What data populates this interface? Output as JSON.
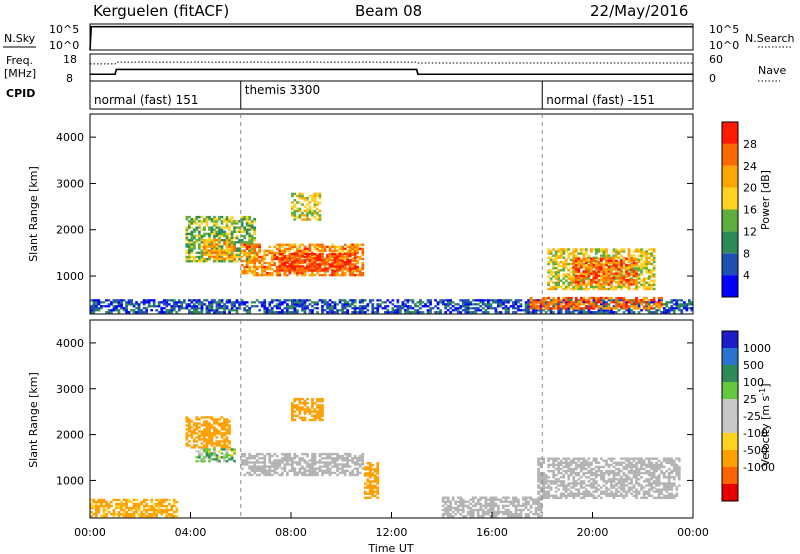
{
  "header": {
    "station": "Kerguelen (fitACF)",
    "beam": "Beam 08",
    "date": "22/May/2016"
  },
  "panel_labels": {
    "nsky": "N.Sky",
    "nsky_ticks": [
      "10^5",
      "10^0"
    ],
    "nsearch": "N.Search",
    "freq_top": "Freq.",
    "freq_unit": "[MHz]",
    "freq_ticks": [
      "18",
      "8"
    ],
    "nave": "Nave",
    "nave_ticks": [
      "60",
      "0"
    ],
    "cpid": "CPID"
  },
  "cpid_modes": [
    {
      "label": "normal (fast) 151",
      "start_hour": 0
    },
    {
      "label": "themis 3300",
      "start_hour": 6
    },
    {
      "label": "normal (fast) -151",
      "start_hour": 18
    }
  ],
  "colors": {
    "power_scale": [
      "#0000ff",
      "#1f4fb3",
      "#2e8b57",
      "#5fae3c",
      "#ffd21f",
      "#ffa500",
      "#ff6a00",
      "#ff1a00"
    ],
    "velocity_scale": [
      "#1c1cc8",
      "#2a73d0",
      "#2e8b57",
      "#64c83c",
      "#c8c8c8",
      "#c8c8c8",
      "#ffd21f",
      "#ffa000",
      "#ff6400",
      "#e60000"
    ],
    "ground_scatter": "#b4b4b4"
  },
  "chart_data": [
    {
      "type": "line",
      "panel": "sky-noise",
      "ylabel": "N.Sky",
      "yscale": "log",
      "ylim": [
        1,
        100000
      ],
      "x_hours": [
        0,
        0.05,
        24
      ],
      "values": [
        1,
        30000,
        30000
      ],
      "series": [
        {
          "name": "N.Sky",
          "values": [
            1,
            30000,
            30000
          ]
        },
        {
          "name": "N.Search",
          "values": []
        }
      ]
    },
    {
      "type": "line",
      "panel": "frequency",
      "ylabel": "Freq. [MHz]",
      "ylim": [
        8,
        18
      ],
      "y2label": "Nave",
      "y2lim": [
        0,
        60
      ],
      "x_hours": [
        0,
        1,
        1.05,
        13,
        13.05,
        24
      ],
      "series": [
        {
          "name": "Freq.",
          "values": [
            10.5,
            10.5,
            12.3,
            12.3,
            10.5,
            10.5
          ]
        },
        {
          "name": "Nave",
          "values": [
            38,
            38,
            42,
            42,
            40,
            40
          ]
        }
      ]
    },
    {
      "type": "heatmap",
      "panel": "power",
      "ylabel": "Slant Range [km]",
      "ylim": [
        180,
        4500
      ],
      "yticks": [
        1000,
        2000,
        3000,
        4000
      ],
      "xlim": [
        0,
        24
      ],
      "colorbar_label": "Power [dB]",
      "colorbar_ticks": [
        4,
        8,
        12,
        16,
        20,
        24,
        28
      ],
      "colorbar_range": [
        0,
        32
      ],
      "regions": [
        {
          "t0": 3.8,
          "t1": 6.6,
          "r0": 1300,
          "r1": 2300,
          "value": 14
        },
        {
          "t0": 4.5,
          "t1": 5.8,
          "r0": 1350,
          "r1": 1800,
          "value": 22
        },
        {
          "t0": 6.0,
          "t1": 10.9,
          "r0": 1000,
          "r1": 1700,
          "value": 24
        },
        {
          "t0": 7.5,
          "t1": 10.6,
          "r0": 1100,
          "r1": 1500,
          "value": 28
        },
        {
          "t0": 8.0,
          "t1": 9.2,
          "r0": 2200,
          "r1": 2800,
          "value": 18
        },
        {
          "t0": 18.2,
          "t1": 22.5,
          "r0": 700,
          "r1": 1600,
          "value": 18
        },
        {
          "t0": 19.2,
          "t1": 21.8,
          "r0": 800,
          "r1": 1400,
          "value": 26
        },
        {
          "t0": 0.0,
          "t1": 24.0,
          "r0": 200,
          "r1": 500,
          "value": 6
        },
        {
          "t0": 17.5,
          "t1": 22.8,
          "r0": 280,
          "r1": 550,
          "value": 26
        }
      ]
    },
    {
      "type": "heatmap",
      "panel": "velocity",
      "ylabel": "Slant Range [km]",
      "ylim": [
        180,
        4500
      ],
      "yticks": [
        1000,
        2000,
        3000,
        4000
      ],
      "xlim": [
        0,
        24
      ],
      "xticks": [
        "00:00",
        "04:00",
        "08:00",
        "12:00",
        "16:00",
        "20:00",
        "00:00"
      ],
      "xlabel": "Time UT",
      "colorbar_label": "Velocity [m s^-1]",
      "colorbar_ticks": [
        1000,
        500,
        100,
        25,
        -25,
        -100,
        -500,
        -1000
      ],
      "regions": [
        {
          "t0": 3.8,
          "t1": 5.6,
          "r0": 1700,
          "r1": 2400,
          "value": -300
        },
        {
          "t0": 4.2,
          "t1": 5.8,
          "r0": 1400,
          "r1": 1700,
          "value": 50
        },
        {
          "t0": 6.0,
          "t1": 10.9,
          "r0": 1100,
          "r1": 1600,
          "value": 0
        },
        {
          "t0": 8.0,
          "t1": 9.3,
          "r0": 2300,
          "r1": 2800,
          "value": -200
        },
        {
          "t0": 10.9,
          "t1": 11.5,
          "r0": 600,
          "r1": 1400,
          "value": -400
        },
        {
          "t0": 17.8,
          "t1": 23.5,
          "r0": 600,
          "r1": 1500,
          "value": 0
        },
        {
          "t0": 0.0,
          "t1": 3.5,
          "r0": 200,
          "r1": 600,
          "value": -150
        },
        {
          "t0": 14.0,
          "t1": 18.0,
          "r0": 200,
          "r1": 650,
          "value": 0
        }
      ]
    }
  ]
}
